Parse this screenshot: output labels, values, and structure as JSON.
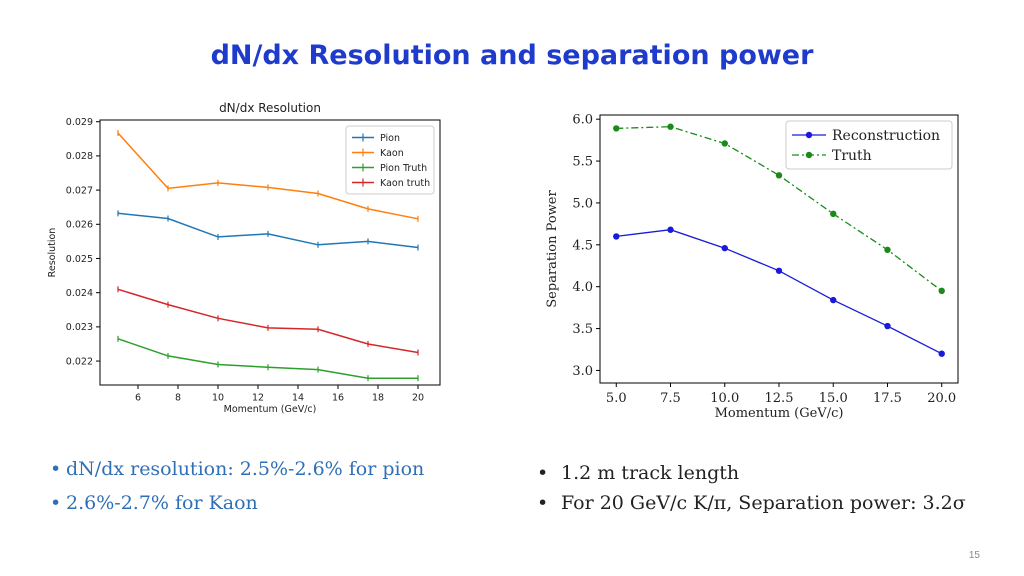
{
  "slide": {
    "title": "dN/dx Resolution and separation power",
    "page_number": "15"
  },
  "bullets_left": [
    "dN/dx resolution: 2.5%-2.6% for pion",
    "2.6%-2.7% for Kaon"
  ],
  "bullets_right": [
    "1.2 m track length",
    "For 20 GeV/c  K/π, Separation power: 3.2σ"
  ],
  "chart_data": [
    {
      "type": "line",
      "title": "dN/dx Resolution",
      "xlabel": "Momentum (GeV/c)",
      "ylabel": "Resolution",
      "x": [
        5,
        7.5,
        10,
        12.5,
        15,
        17.5,
        20
      ],
      "xlim": [
        4.1,
        21.1
      ],
      "ylim": [
        0.0213,
        0.02905
      ],
      "xticks": [
        6,
        8,
        10,
        12,
        14,
        16,
        18,
        20
      ],
      "yticks": [
        0.022,
        0.023,
        0.024,
        0.025,
        0.026,
        0.027,
        0.028,
        0.029
      ],
      "ytick_labels": [
        "0.022",
        "0.023",
        "0.024",
        "0.025",
        "0.026",
        "0.027",
        "0.028",
        "0.029"
      ],
      "grid": false,
      "legend": "top-right",
      "series": [
        {
          "name": "Pion",
          "color": "#1f77b4",
          "values": [
            0.02632,
            0.02617,
            0.02563,
            0.02572,
            0.0254,
            0.0255,
            0.02532
          ]
        },
        {
          "name": "Kaon",
          "color": "#ff7f0e",
          "values": [
            0.02867,
            0.02705,
            0.02721,
            0.02708,
            0.0269,
            0.02645,
            0.02616
          ]
        },
        {
          "name": "Pion Truth",
          "color": "#2ca02c",
          "values": [
            0.02265,
            0.02215,
            0.0219,
            0.02182,
            0.02175,
            0.0215,
            0.0215
          ]
        },
        {
          "name": "Kaon truth",
          "color": "#d62728",
          "values": [
            0.0241,
            0.02365,
            0.02325,
            0.02297,
            0.02293,
            0.0225,
            0.02225
          ]
        }
      ]
    },
    {
      "type": "line",
      "title": "",
      "xlabel": "Momentum (GeV/c)",
      "ylabel": "Separation Power",
      "x": [
        5,
        7.5,
        10,
        12.5,
        15,
        17.5,
        20
      ],
      "xlim": [
        4.25,
        20.75
      ],
      "ylim": [
        2.85,
        6.05
      ],
      "xticks": [
        5.0,
        7.5,
        10.0,
        12.5,
        15.0,
        17.5,
        20.0
      ],
      "xtick_labels": [
        "5.0",
        "7.5",
        "10.0",
        "12.5",
        "15.0",
        "17.5",
        "20.0"
      ],
      "yticks": [
        3.0,
        3.5,
        4.0,
        4.5,
        5.0,
        5.5,
        6.0
      ],
      "ytick_labels": [
        "3.0",
        "3.5",
        "4.0",
        "4.5",
        "5.0",
        "5.5",
        "6.0"
      ],
      "grid": false,
      "legend": "top-right",
      "series": [
        {
          "name": "Reconstruction",
          "color": "#1a1adb",
          "style": "solid",
          "values": [
            4.6,
            4.68,
            4.46,
            4.19,
            3.84,
            3.53,
            3.2
          ]
        },
        {
          "name": "Truth",
          "color": "#1a8a1a",
          "style": "dashdot",
          "values": [
            5.89,
            5.91,
            5.71,
            5.33,
            4.87,
            4.44,
            3.95
          ]
        }
      ]
    }
  ]
}
